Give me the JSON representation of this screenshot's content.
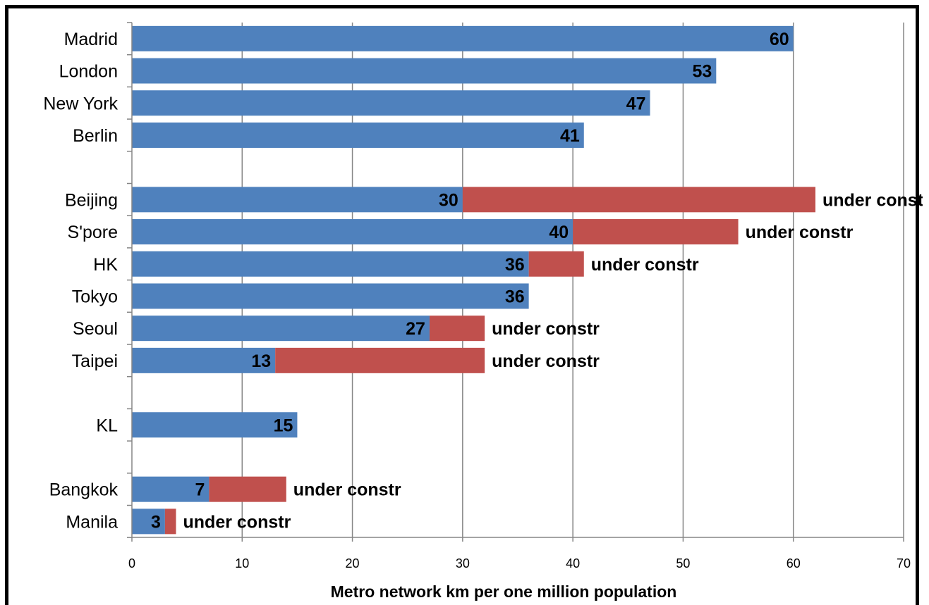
{
  "chart_data": {
    "type": "bar",
    "orientation": "horizontal",
    "stacked": true,
    "xlabel": "Metro network km per one million population",
    "xlim": [
      0,
      70
    ],
    "xticks": [
      0,
      10,
      20,
      30,
      40,
      50,
      60,
      70
    ],
    "grid": true,
    "legend": "none",
    "categories": [
      "Madrid",
      "London",
      "New York",
      "Berlin",
      "",
      "Beijing",
      "S'pore",
      "HK",
      "Tokyo",
      "Seoul",
      "Taipei",
      "",
      "KL",
      "",
      "Bangkok",
      "Manila"
    ],
    "series": [
      {
        "color": "#4F81BD",
        "values": [
          60,
          53,
          47,
          41,
          null,
          30,
          40,
          36,
          36,
          27,
          13,
          null,
          15,
          null,
          7,
          3
        ]
      },
      {
        "color": "#C0504D",
        "values": [
          null,
          null,
          null,
          null,
          null,
          32,
          15,
          5,
          null,
          5,
          19,
          null,
          null,
          null,
          7,
          1
        ]
      }
    ],
    "data_labels": [
      "60",
      "53",
      "47",
      "41",
      "",
      "30",
      "40",
      "36",
      "36",
      "27",
      "13",
      "",
      "15",
      "",
      "7",
      "3"
    ],
    "annotation_text": "under constr",
    "annotated_categories": [
      "Beijing",
      "S'pore",
      "HK",
      "Seoul",
      "Taipei",
      "Bangkok",
      "Manila"
    ]
  }
}
